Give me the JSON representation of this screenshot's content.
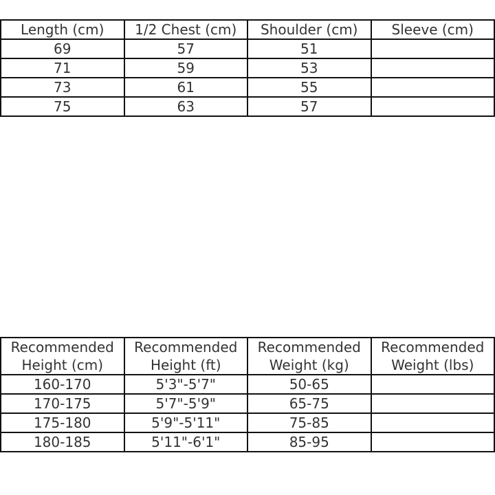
{
  "size_table": {
    "headers": [
      "Length (cm)",
      "1/2 Chest (cm)",
      "Shoulder (cm)",
      "Sleeve (cm)"
    ],
    "rows": [
      [
        "69",
        "57",
        "51",
        ""
      ],
      [
        "71",
        "59",
        "53",
        ""
      ],
      [
        "73",
        "61",
        "55",
        ""
      ],
      [
        "75",
        "63",
        "57",
        ""
      ]
    ]
  },
  "recommend_table": {
    "headers": [
      "Recommended Height (cm)",
      "Recommended Height (ft)",
      "Recommended Weight (kg)",
      "Recommended Weight (lbs)"
    ],
    "rows": [
      [
        "160-170",
        "5'3\"-5'7\"",
        "50-65",
        ""
      ],
      [
        "170-175",
        "5'7\"-5'9\"",
        "65-75",
        ""
      ],
      [
        "175-180",
        "5'9\"-5'11\"",
        "75-85",
        ""
      ],
      [
        "180-185",
        "5'11\"-6'1\"",
        "85-95",
        ""
      ]
    ]
  }
}
